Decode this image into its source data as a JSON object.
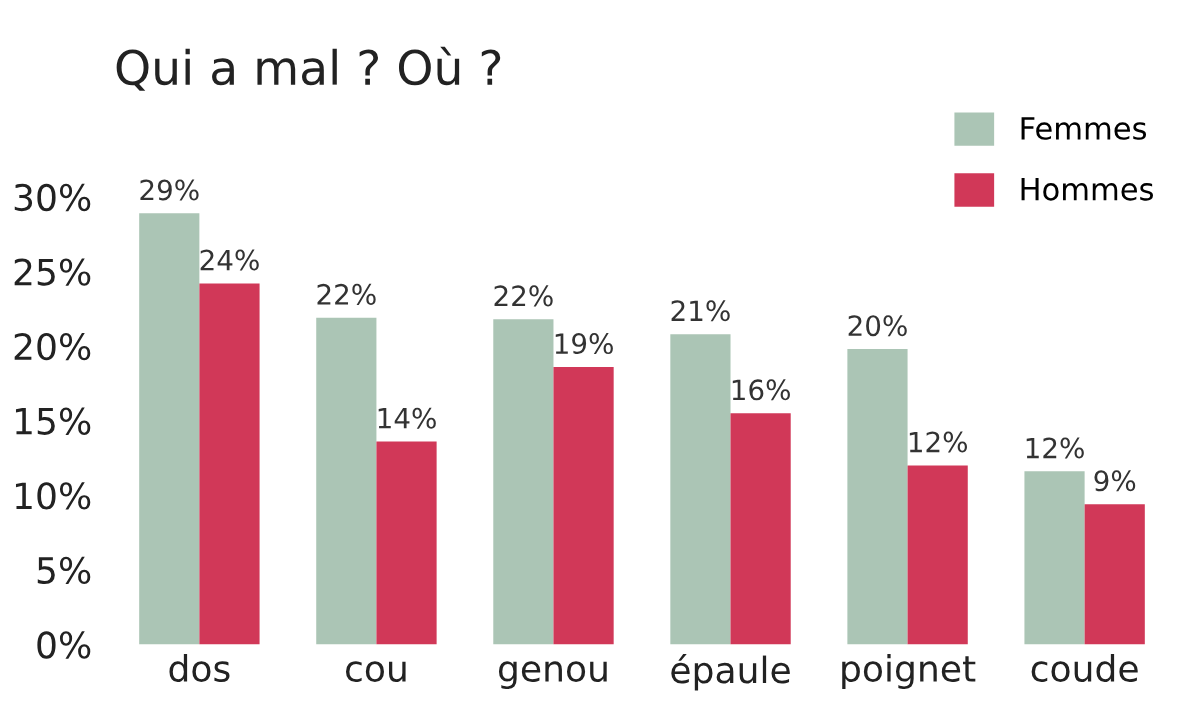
{
  "chart_data": {
    "type": "bar",
    "title": "Qui a mal ? Où ?",
    "categories": [
      "dos",
      "cou",
      "genou",
      "épaule",
      "poignet",
      "coude"
    ],
    "series": [
      {
        "name": "Femmes",
        "color": "#abc5b5",
        "values": [
          28.9,
          21.9,
          21.8,
          20.8,
          19.8,
          11.6
        ],
        "value_labels": [
          "29%",
          "22%",
          "22%",
          "21%",
          "20%",
          "12%"
        ]
      },
      {
        "name": "Hommes",
        "color": "#d13858",
        "values": [
          24.2,
          13.6,
          18.6,
          15.5,
          12.0,
          9.4
        ],
        "value_labels": [
          "24%",
          "14%",
          "19%",
          "16%",
          "12%",
          "9%"
        ]
      }
    ],
    "ylim": [
      0,
      30
    ],
    "yticks": [
      {
        "value": 0,
        "label": "0%"
      },
      {
        "value": 5,
        "label": "5%"
      },
      {
        "value": 10,
        "label": "10%"
      },
      {
        "value": 15,
        "label": "15%"
      },
      {
        "value": 20,
        "label": "20%"
      },
      {
        "value": 25,
        "label": "25%"
      },
      {
        "value": 30,
        "label": "30%"
      }
    ],
    "grid": false,
    "legend": "top right"
  }
}
